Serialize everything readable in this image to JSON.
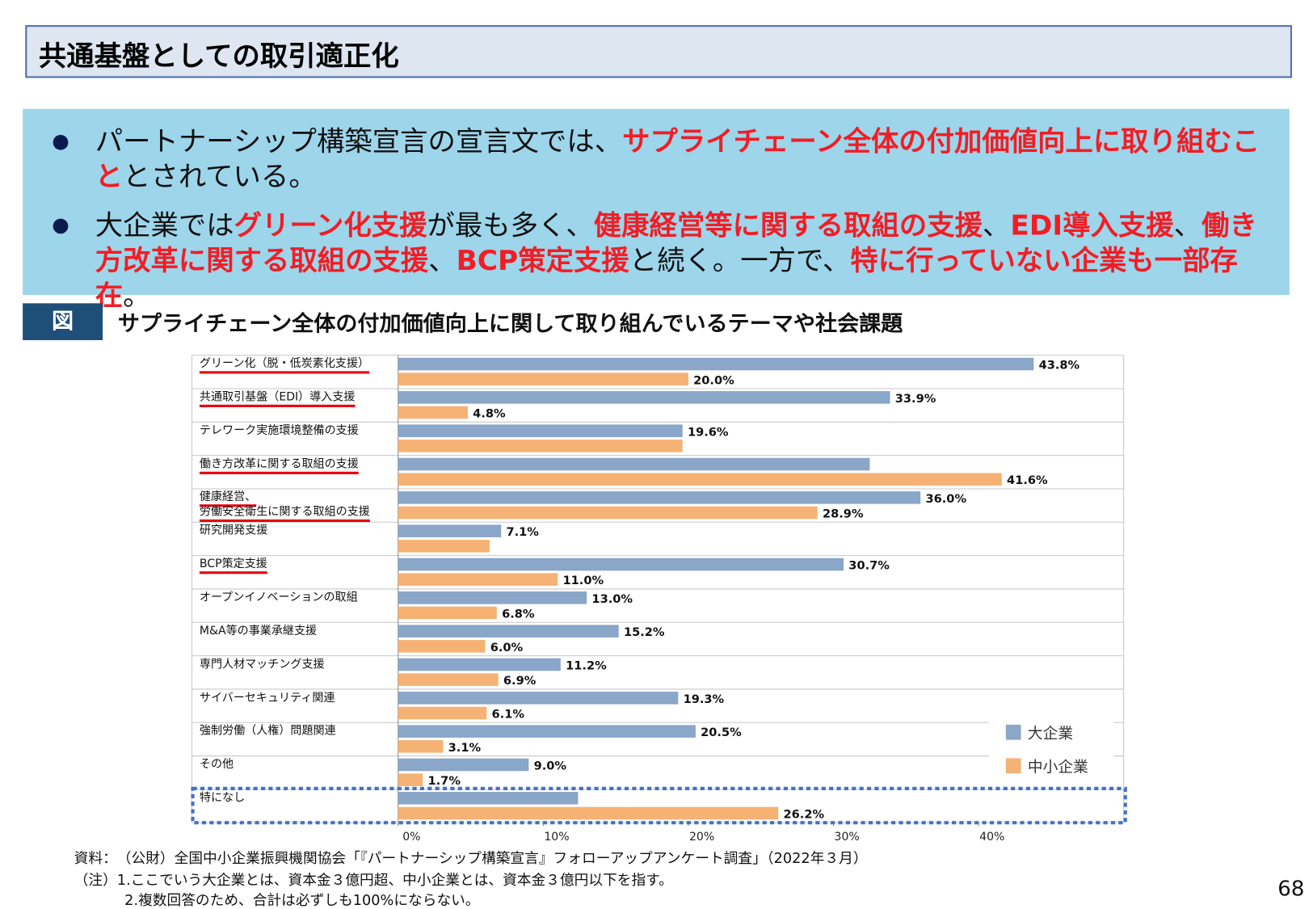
{
  "header": {
    "title": "共通基盤としての取引適正化"
  },
  "bullets": [
    {
      "runs": [
        {
          "text": "パートナーシップ構築宣言の宣言文では、",
          "emphasis": false
        },
        {
          "text": "サプライチェーン全体の付加価値向上に取り組むこと",
          "emphasis": true
        },
        {
          "text": "とされている。",
          "emphasis": false
        }
      ]
    },
    {
      "runs": [
        {
          "text": "大企業では",
          "emphasis": false
        },
        {
          "text": "グリーン化支援",
          "emphasis": true
        },
        {
          "text": "が最も多く、",
          "emphasis": false
        },
        {
          "text": "健康経営等に関する取組の支援",
          "emphasis": true
        },
        {
          "text": "、",
          "emphasis": false
        },
        {
          "text": "EDI導入支援",
          "emphasis": true
        },
        {
          "text": "、",
          "emphasis": false
        },
        {
          "text": "働き方改革に関する取組の支援",
          "emphasis": true
        },
        {
          "text": "、",
          "emphasis": false
        },
        {
          "text": "BCP策定支援",
          "emphasis": true
        },
        {
          "text": "と続く。一方で、",
          "emphasis": false
        },
        {
          "text": "特に行っていない企業も一部存在",
          "emphasis": true
        },
        {
          "text": "。",
          "emphasis": false
        }
      ]
    }
  ],
  "figure_label": "図",
  "chart_data": {
    "type": "hbar",
    "title": "サプライチェーン全体の付加価値向上に関して取り組んでいるテーマや社会課題",
    "categories": [
      "グリーン化（脱・低炭素化支援）",
      "共通取引基盤（EDI）導入支援",
      "テレワーク実施環境整備の支援",
      "働き方改革に関する取組の支援",
      "健康経営、\n労働安全衛生に関する取組の支援",
      "研究開発支援",
      "BCP策定支援",
      "オープンイノベーションの取組",
      "M&A等の事業承継支援",
      "専門人材マッチング支援",
      "サイバーセキュリティ関連",
      "強制労働（人権）問題関連",
      "その他",
      "特になし"
    ],
    "series": [
      {
        "name": "大企業",
        "color": "#8aa6c8",
        "values": [
          43.8,
          33.9,
          19.6,
          32.5,
          36.0,
          7.1,
          30.7,
          13.0,
          15.2,
          11.2,
          19.3,
          20.5,
          9.0,
          12.4
        ],
        "value_labels": [
          "43.8%",
          "33.9%",
          "19.6%",
          null,
          "36.0%",
          "7.1%",
          "30.7%",
          "13.0%",
          "15.2%",
          "11.2%",
          "19.3%",
          "20.5%",
          "9.0%",
          null
        ]
      },
      {
        "name": "中小企業",
        "color": "#f5b274",
        "values": [
          20.0,
          4.8,
          19.6,
          41.6,
          28.9,
          6.3,
          11.0,
          6.8,
          6.0,
          6.9,
          6.1,
          3.1,
          1.7,
          26.2
        ],
        "value_labels": [
          "20.0%",
          "4.8%",
          null,
          "41.6%",
          "28.9%",
          null,
          "11.0%",
          "6.8%",
          "6.0%",
          "6.9%",
          "6.1%",
          "3.1%",
          "1.7%",
          "26.2%"
        ]
      }
    ],
    "xlim": [
      0,
      50
    ],
    "xticks": [
      {
        "value": 0,
        "label": "0%"
      },
      {
        "value": 10,
        "label": "10%"
      },
      {
        "value": 20,
        "label": "20%"
      },
      {
        "value": 30,
        "label": "30%"
      },
      {
        "value": 40,
        "label": "40%"
      }
    ],
    "grid": false,
    "legend": "lower right",
    "highlight_categories": [
      0,
      1,
      3,
      4,
      6
    ],
    "highlight_color": "#e8000d",
    "boxed_category": 13,
    "box_color": "#4472c4"
  },
  "source": "資料：　（公財）全国中小企業振興機関協会「『パートナーシップ構築宣言』フォローアップアンケート調査」（2022年３月）",
  "notes": [
    "（注）1.ここでいう大企業とは、資本金３億円超、中小企業とは、資本金３億円以下を指す。",
    "2.複数回答のため、合計は必ずしも100%にならない。"
  ],
  "page_number": "68"
}
